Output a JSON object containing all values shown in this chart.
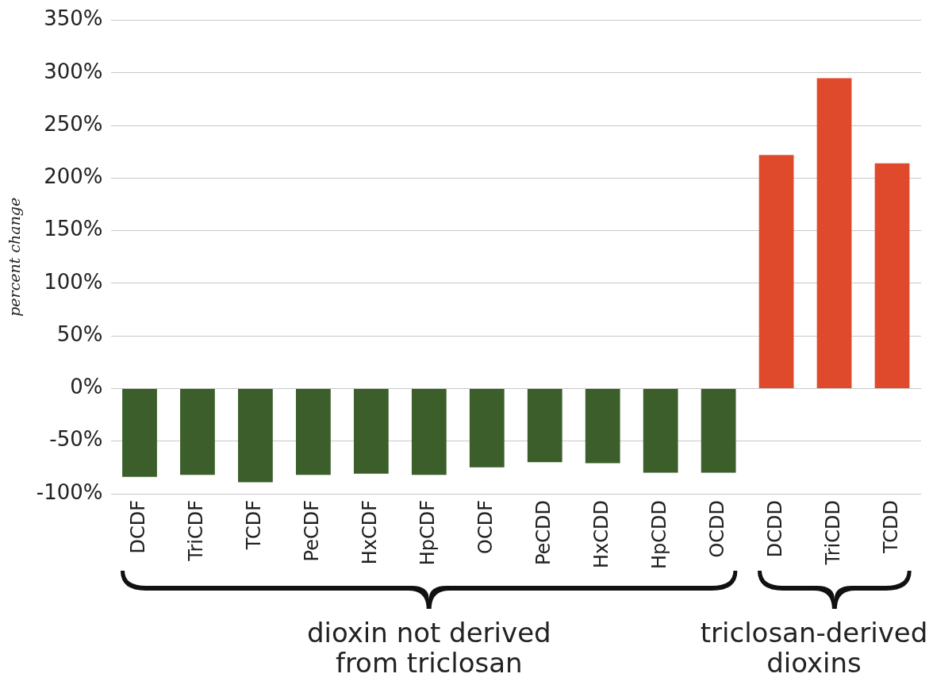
{
  "chart_data": {
    "type": "bar",
    "ylabel": "percent change",
    "categories": [
      "DCDF",
      "TriCDF",
      "TCDF",
      "PeCDF",
      "HxCDF",
      "HpCDF",
      "OCDF",
      "PeCDD",
      "HxCDD",
      "HpCDD",
      "OCDD",
      "DCDD",
      "TriCDD",
      "TCDD"
    ],
    "values": [
      -84,
      -82,
      -89,
      -82,
      -81,
      -82,
      -75,
      -70,
      -71,
      -80,
      -80,
      222,
      295,
      214
    ],
    "colors": [
      "#3b5e2b",
      "#3b5e2b",
      "#3b5e2b",
      "#3b5e2b",
      "#3b5e2b",
      "#3b5e2b",
      "#3b5e2b",
      "#3b5e2b",
      "#3b5e2b",
      "#3b5e2b",
      "#3b5e2b",
      "#e04a2c",
      "#e04a2c",
      "#e04a2c"
    ],
    "ylim": [
      -100,
      350
    ],
    "yticks": [
      {
        "value": -100,
        "label": "-100%"
      },
      {
        "value": -50,
        "label": "-50%"
      },
      {
        "value": 0,
        "label": "0%"
      },
      {
        "value": 50,
        "label": "50%"
      },
      {
        "value": 100,
        "label": "100%"
      },
      {
        "value": 150,
        "label": "150%"
      },
      {
        "value": 200,
        "label": "200%"
      },
      {
        "value": 250,
        "label": "250%"
      },
      {
        "value": 300,
        "label": "300%"
      },
      {
        "value": 350,
        "label": "350%"
      }
    ],
    "grid": "y",
    "legend": false,
    "annotations": [
      "dioxin not derived\nfrom triclosan",
      "triclosan-derived\ndioxins"
    ]
  }
}
